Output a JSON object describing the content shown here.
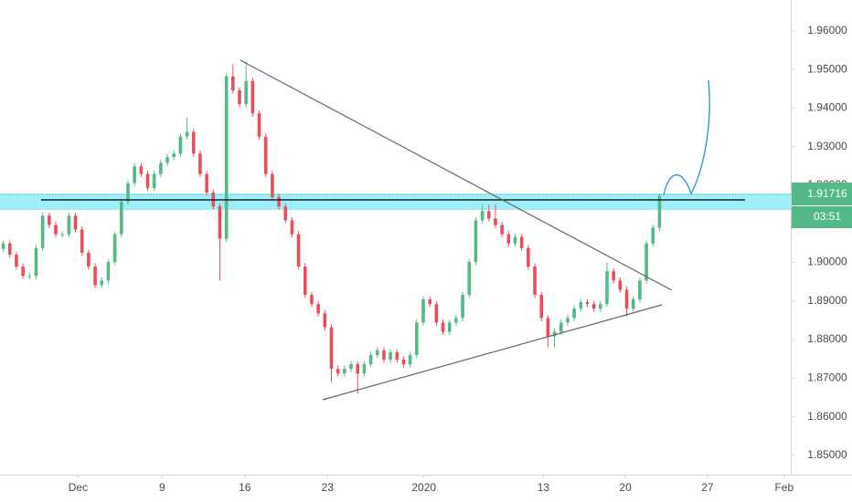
{
  "chart_data": {
    "type": "candlestick",
    "up_color": "#53b987",
    "down_color": "#eb4d5c",
    "xlim": [
      -0.5,
      120
    ],
    "ylim": [
      1.845,
      1.968
    ],
    "yticks": [
      {
        "value": 1.85,
        "label": "1.85000"
      },
      {
        "value": 1.86,
        "label": "1.86000"
      },
      {
        "value": 1.87,
        "label": "1.87000"
      },
      {
        "value": 1.88,
        "label": "1.88000"
      },
      {
        "value": 1.89,
        "label": "1.89000"
      },
      {
        "value": 1.9,
        "label": "1.90000"
      },
      {
        "value": 1.91,
        "label": "1.91000"
      },
      {
        "value": 1.92,
        "label": "1.92000"
      },
      {
        "value": 1.93,
        "label": "1.93000"
      },
      {
        "value": 1.94,
        "label": "1.94000"
      },
      {
        "value": 1.95,
        "label": "1.95000"
      },
      {
        "value": 1.96,
        "label": "1.96000"
      }
    ],
    "xticks": [
      {
        "value": 11.4,
        "label": "Dec"
      },
      {
        "value": 24.2,
        "label": "9"
      },
      {
        "value": 36.8,
        "label": "16"
      },
      {
        "value": 49.4,
        "label": "23"
      },
      {
        "value": 64.1,
        "label": "2020"
      },
      {
        "value": 82.3,
        "label": "13"
      },
      {
        "value": 94.8,
        "label": "20"
      },
      {
        "value": 107.3,
        "label": "27"
      },
      {
        "value": 119,
        "label": "Feb"
      }
    ],
    "last_price": 1.91716,
    "countdown": "03:51",
    "open": [
      1.9035,
      1.9049,
      1.902,
      1.8989,
      1.8965,
      1.8965,
      1.9037,
      1.9121,
      1.9097,
      1.9073,
      1.9073,
      1.9121,
      1.9085,
      1.9025,
      1.8989,
      1.8941,
      1.8953,
      1.9001,
      1.9073,
      1.9157,
      1.9205,
      1.9249,
      1.9229,
      1.9193,
      1.9229,
      1.9258,
      1.9273,
      1.9282,
      1.9326,
      1.9338,
      1.9282,
      1.9229,
      1.9181,
      1.9145,
      1.9061,
      1.9482,
      1.9446,
      1.941,
      1.947,
      1.9386,
      1.9326,
      1.9229,
      1.9169,
      1.9145,
      1.9109,
      1.9073,
      1.8989,
      1.8916,
      1.8892,
      1.8868,
      1.8832,
      1.8724,
      1.8712,
      1.8724,
      1.8736,
      1.8712,
      1.8736,
      1.876,
      1.8772,
      1.8748,
      1.8767,
      1.8748,
      1.8736,
      1.876,
      1.8844,
      1.8904,
      1.8892,
      1.8844,
      1.882,
      1.8844,
      1.8856,
      1.8916,
      1.9001,
      1.9109,
      1.9133,
      1.9114,
      1.9097,
      1.9073,
      1.9049,
      1.9066,
      1.9037,
      1.8989,
      1.8916,
      1.8856,
      1.8808,
      1.882,
      1.8844,
      1.8856,
      1.888,
      1.8897,
      1.8892,
      1.888,
      1.8892,
      1.8977,
      1.8953,
      1.8929,
      1.888,
      1.8904,
      1.8953,
      1.9049,
      1.909
    ],
    "high": [
      1.9057,
      1.9057,
      1.9028,
      1.8997,
      1.8973,
      1.9045,
      1.9129,
      1.9129,
      1.9105,
      1.9081,
      1.9129,
      1.9129,
      1.9093,
      1.9033,
      1.8997,
      1.8961,
      1.9009,
      1.9081,
      1.9165,
      1.9213,
      1.9257,
      1.9257,
      1.9237,
      1.9237,
      1.9266,
      1.9281,
      1.929,
      1.9334,
      1.9375,
      1.9346,
      1.929,
      1.9237,
      1.9189,
      1.9153,
      1.949,
      1.9515,
      1.9454,
      1.952,
      1.9478,
      1.9394,
      1.9334,
      1.9237,
      1.9177,
      1.9153,
      1.9117,
      1.9081,
      1.8997,
      1.8924,
      1.89,
      1.8876,
      1.884,
      1.8732,
      1.8732,
      1.8744,
      1.8744,
      1.8744,
      1.8768,
      1.878,
      1.878,
      1.8775,
      1.8775,
      1.8756,
      1.8768,
      1.8852,
      1.8912,
      1.8912,
      1.89,
      1.8852,
      1.8852,
      1.8864,
      1.8924,
      1.9009,
      1.9117,
      1.915,
      1.915,
      1.915,
      1.9105,
      1.9081,
      1.9074,
      1.9074,
      1.9045,
      1.8997,
      1.8924,
      1.8864,
      1.8828,
      1.8852,
      1.8864,
      1.8888,
      1.8905,
      1.8905,
      1.89,
      1.89,
      1.9,
      1.8985,
      1.8961,
      1.8937,
      1.8912,
      1.8961,
      1.9057,
      1.9098,
      1.9178
    ],
    "low": [
      1.9027,
      1.9012,
      1.8981,
      1.8957,
      1.8957,
      1.8957,
      1.9029,
      1.9089,
      1.9065,
      1.9065,
      1.9065,
      1.9077,
      1.9017,
      1.8981,
      1.8933,
      1.8933,
      1.8945,
      1.8993,
      1.9065,
      1.9149,
      1.9197,
      1.9221,
      1.9185,
      1.9185,
      1.9221,
      1.925,
      1.9265,
      1.9274,
      1.9318,
      1.9274,
      1.9221,
      1.9173,
      1.9137,
      1.8953,
      1.9053,
      1.9438,
      1.9402,
      1.9402,
      1.9378,
      1.9318,
      1.9221,
      1.9161,
      1.9137,
      1.9101,
      1.9065,
      1.8981,
      1.8908,
      1.8884,
      1.886,
      1.8824,
      1.869,
      1.8704,
      1.8704,
      1.8716,
      1.866,
      1.8704,
      1.8728,
      1.8752,
      1.874,
      1.874,
      1.874,
      1.8728,
      1.8728,
      1.8752,
      1.8836,
      1.8884,
      1.8836,
      1.8812,
      1.8812,
      1.8836,
      1.8848,
      1.8908,
      1.8993,
      1.9101,
      1.9106,
      1.9089,
      1.9065,
      1.9041,
      1.9041,
      1.9029,
      1.8981,
      1.8908,
      1.8848,
      1.878,
      1.878,
      1.8812,
      1.8836,
      1.8848,
      1.8872,
      1.8884,
      1.8872,
      1.8872,
      1.8884,
      1.8945,
      1.8921,
      1.886,
      1.8872,
      1.8896,
      1.8945,
      1.9041,
      1.9082
    ],
    "close": [
      1.9049,
      1.902,
      1.8989,
      1.8965,
      1.8965,
      1.9037,
      1.9121,
      1.9097,
      1.9073,
      1.9073,
      1.9121,
      1.9085,
      1.9025,
      1.8989,
      1.8941,
      1.8953,
      1.9001,
      1.9073,
      1.9157,
      1.9205,
      1.9249,
      1.9229,
      1.9193,
      1.9229,
      1.9258,
      1.9273,
      1.9282,
      1.9326,
      1.9338,
      1.9282,
      1.9229,
      1.9181,
      1.9145,
      1.9061,
      1.9482,
      1.9446,
      1.941,
      1.947,
      1.9386,
      1.9326,
      1.9229,
      1.9169,
      1.9145,
      1.9109,
      1.9073,
      1.8989,
      1.8916,
      1.8892,
      1.8868,
      1.8832,
      1.8724,
      1.8712,
      1.8724,
      1.8736,
      1.8712,
      1.8736,
      1.876,
      1.8772,
      1.8748,
      1.8767,
      1.8748,
      1.8736,
      1.876,
      1.8844,
      1.8904,
      1.8892,
      1.8844,
      1.882,
      1.8844,
      1.8856,
      1.8916,
      1.9001,
      1.9109,
      1.9133,
      1.9114,
      1.9097,
      1.9073,
      1.9049,
      1.9066,
      1.9037,
      1.8989,
      1.8916,
      1.8856,
      1.8808,
      1.882,
      1.8844,
      1.8856,
      1.888,
      1.8897,
      1.8892,
      1.888,
      1.8892,
      1.8977,
      1.8953,
      1.8929,
      1.888,
      1.8904,
      1.8953,
      1.9049,
      1.909,
      1.9172
    ]
  }
}
